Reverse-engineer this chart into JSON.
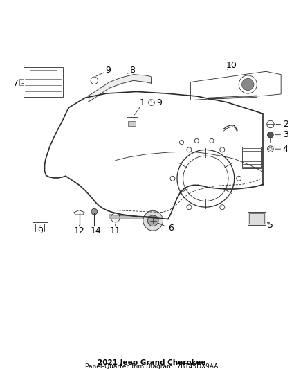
{
  "title": "2021 Jeep Grand Cherokee",
  "subtitle": "Panel-Quarter Trim Diagram",
  "part_number": "7BT45DX9AA",
  "background_color": "#ffffff",
  "line_color": "#2a2a2a",
  "label_color": "#000000",
  "fig_width": 4.38,
  "fig_height": 5.33,
  "dpi": 100,
  "label_font_size": 9,
  "title_font_size": 7.5
}
